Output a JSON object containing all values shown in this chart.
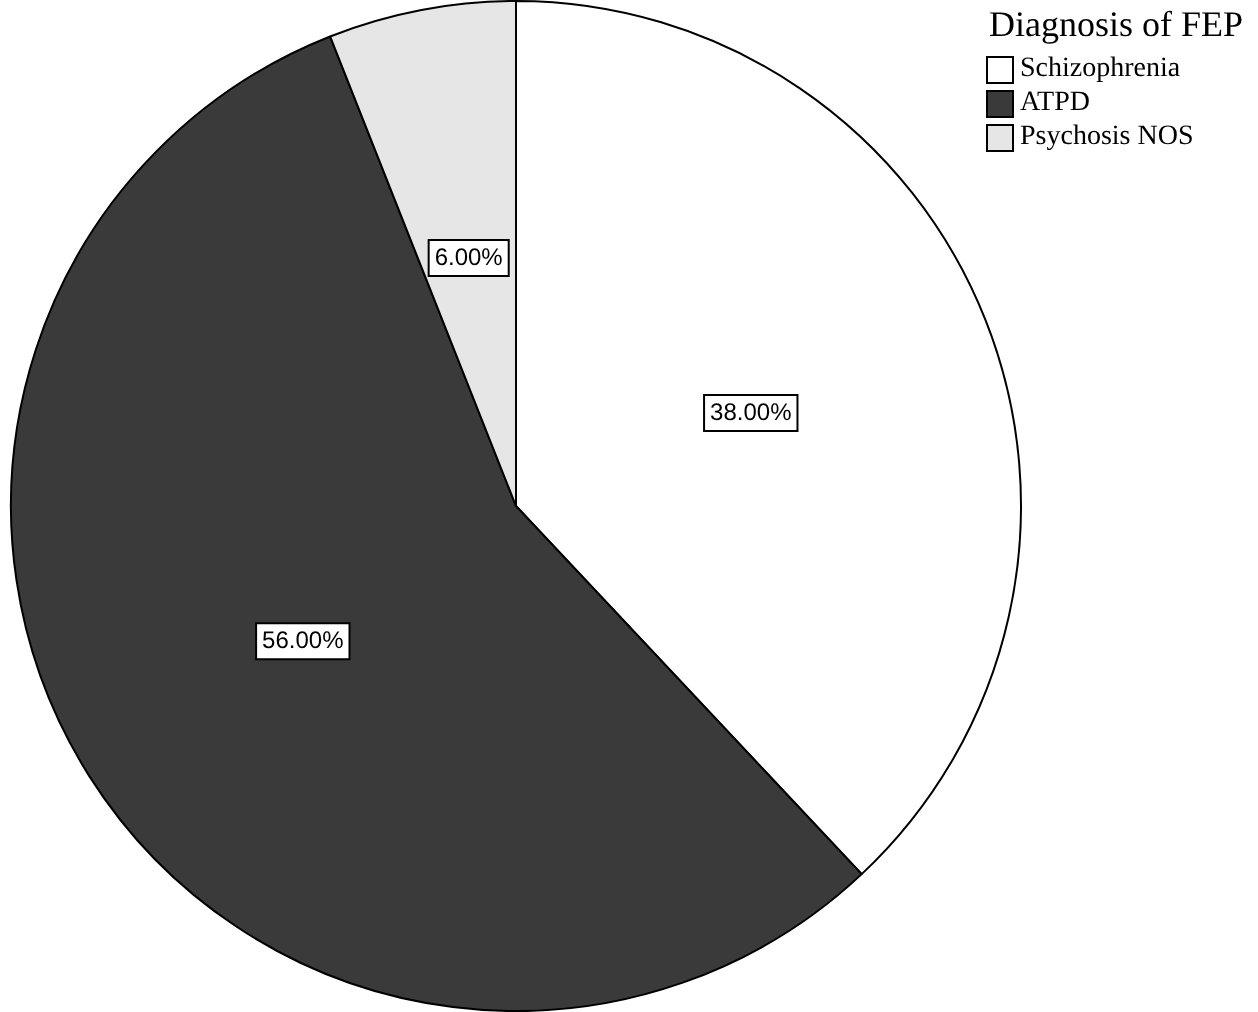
{
  "chart_data": {
    "type": "pie",
    "legend_title": "Diagnosis of FEP",
    "legend": "top right",
    "categories": [
      "Schizophrenia",
      "ATPD",
      "Psychosis NOS"
    ],
    "values": [
      38,
      56,
      6
    ],
    "colors": [
      "#ffffff",
      "#3a3a3a",
      "#e6e6e6"
    ],
    "value_labels": [
      "38.00%",
      "56.00%",
      "6.00%"
    ]
  }
}
